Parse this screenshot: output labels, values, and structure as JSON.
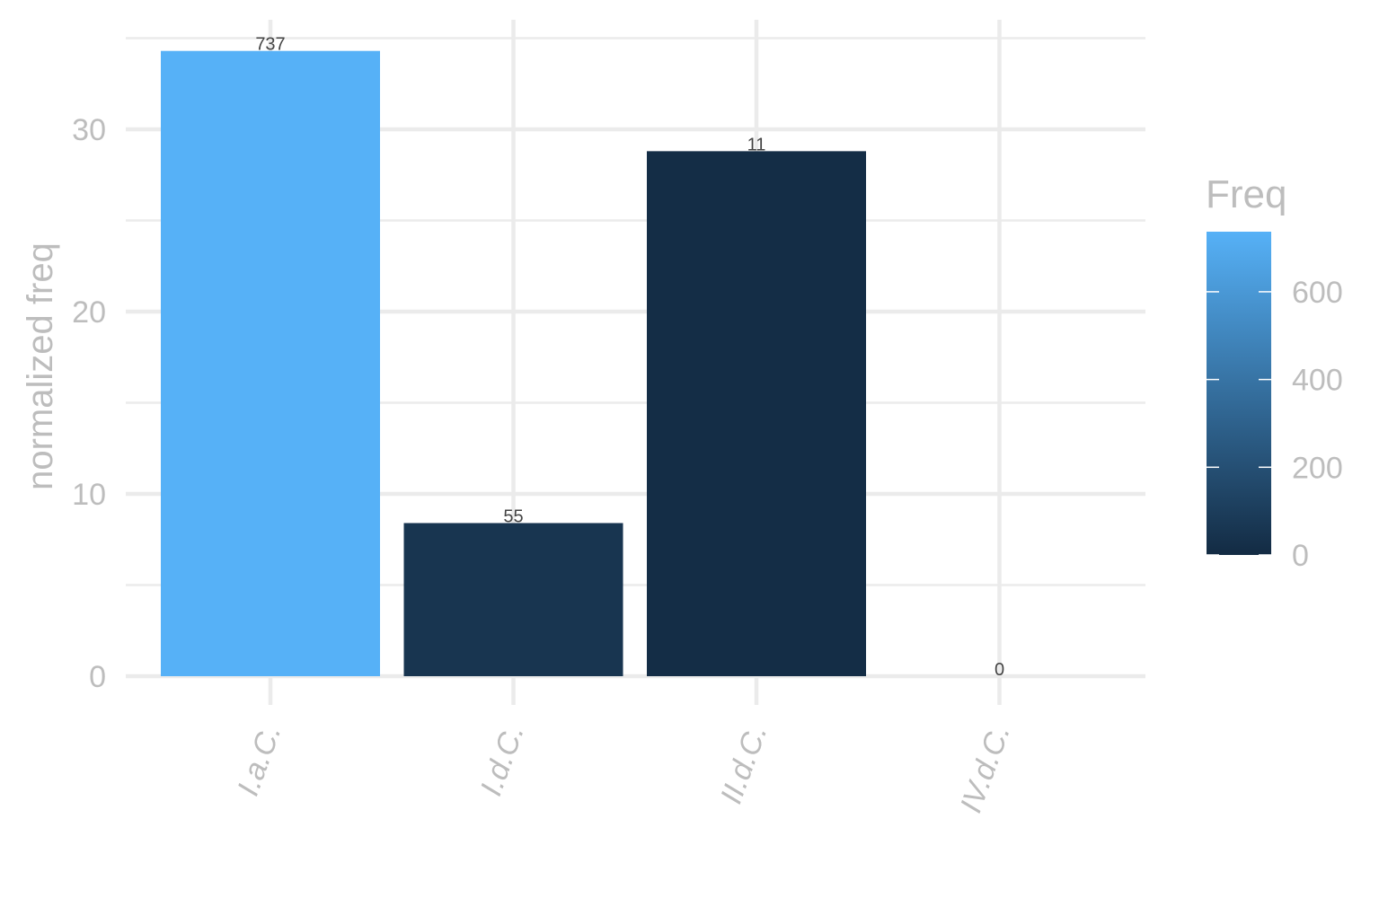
{
  "chart_data": {
    "type": "bar",
    "categories": [
      "I.a.C.",
      "I.d.C.",
      "II.d.C.",
      "IV.d.C."
    ],
    "values": [
      34.3,
      8.4,
      28.8,
      0
    ],
    "bar_labels": [
      "737",
      "55",
      "11",
      "0"
    ],
    "fill_freq": [
      737,
      55,
      11,
      0
    ],
    "ylabel": "normalized freq",
    "xlabel": "",
    "ylim": [
      0,
      36
    ],
    "y_ticks": [
      0,
      10,
      20,
      30
    ],
    "grid": true,
    "legend": {
      "title": "Freq",
      "placement": "right",
      "range": [
        0,
        737
      ],
      "ticks": [
        0,
        200,
        400,
        600
      ],
      "color_low": "#132b43",
      "color_high": "#56b1f7"
    }
  }
}
